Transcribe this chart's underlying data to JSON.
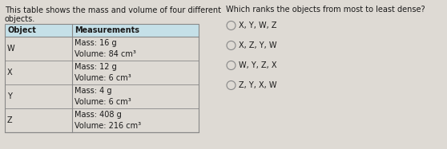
{
  "intro_text_line1": "This table shows the mass and volume of four different",
  "intro_text_line2": "objects.",
  "question_text": "Which ranks the objects from most to least dense?",
  "table_header": [
    "Object",
    "Measurements"
  ],
  "table_rows": [
    {
      "object": "W",
      "mass": "Mass: 16 g",
      "volume": "Volume: 84 cm³"
    },
    {
      "object": "X",
      "mass": "Mass: 12 g",
      "volume": "Volume: 6 cm³"
    },
    {
      "object": "Y",
      "mass": "Mass: 4 g",
      "volume": "Volume: 6 cm³"
    },
    {
      "object": "Z",
      "mass": "Mass: 408 g",
      "volume": "Volume: 216 cm³"
    }
  ],
  "choices": [
    "X, Y, W, Z",
    "X, Z, Y, W",
    "W, Y, Z, X",
    "Z, Y, X, W"
  ],
  "bg_color": "#dedad4",
  "header_bg": "#c5e0e8",
  "row_bg": "#dedad4",
  "border_color": "#888888",
  "text_color": "#1a1a1a"
}
